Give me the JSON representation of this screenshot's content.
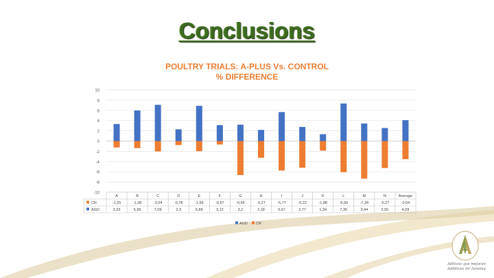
{
  "slide": {
    "title": "Conclusions"
  },
  "branding": {
    "tagline_lines": [
      "Aditivos que mejoran",
      "Additives for farming"
    ],
    "logo_icon": "leaf-a-logo-icon"
  },
  "chart_data": {
    "type": "bar",
    "title_lines": [
      "POULTRY TRIALS: A-PLUS Vs. CONTROL",
      "% DIFFERENCE"
    ],
    "categories": [
      "A",
      "B",
      "C",
      "D",
      "E",
      "F",
      "G",
      "H",
      "I",
      "J",
      "K",
      "L",
      "M",
      "N",
      "Average"
    ],
    "ylim": [
      -10,
      10
    ],
    "yticks": [
      -10,
      -8,
      -6,
      -4,
      -2,
      0,
      2,
      4,
      6,
      8,
      10
    ],
    "grid": true,
    "legend_placement": "bottom",
    "data_table": true,
    "series": [
      {
        "name": "CR",
        "color": "#ed7d31",
        "values": [
          -1.25,
          -1.38,
          -2.04,
          -0.78,
          -1.99,
          -0.67,
          -6.65,
          -3.27,
          -5.77,
          -5.22,
          -1.88,
          -6.09,
          -7.34,
          -5.27,
          -3.54
        ],
        "labels": [
          "-1,25",
          "-1,38",
          "-2,04",
          "-0,78",
          "-1,99",
          "-0,67",
          "-6,65",
          "-3,27",
          "-5,77",
          "-5,22",
          "-1,88",
          "-6,09",
          "-7,34",
          "-5,27",
          "-3,54"
        ]
      },
      {
        "name": "AGD",
        "color": "#4472c4",
        "values": [
          3.33,
          5.99,
          7.09,
          2.3,
          6.89,
          3.12,
          3.2,
          2.18,
          5.67,
          2.77,
          1.34,
          7.35,
          3.44,
          2.55,
          4.09
        ],
        "labels": [
          "3,33",
          "5,99",
          "7,09",
          "2,3",
          "6,89",
          "3,12",
          "3,2",
          "2,18",
          "5,67",
          "2,77",
          "1,34",
          "7,35",
          "3,44",
          "2,55",
          "4,09"
        ]
      }
    ]
  }
}
